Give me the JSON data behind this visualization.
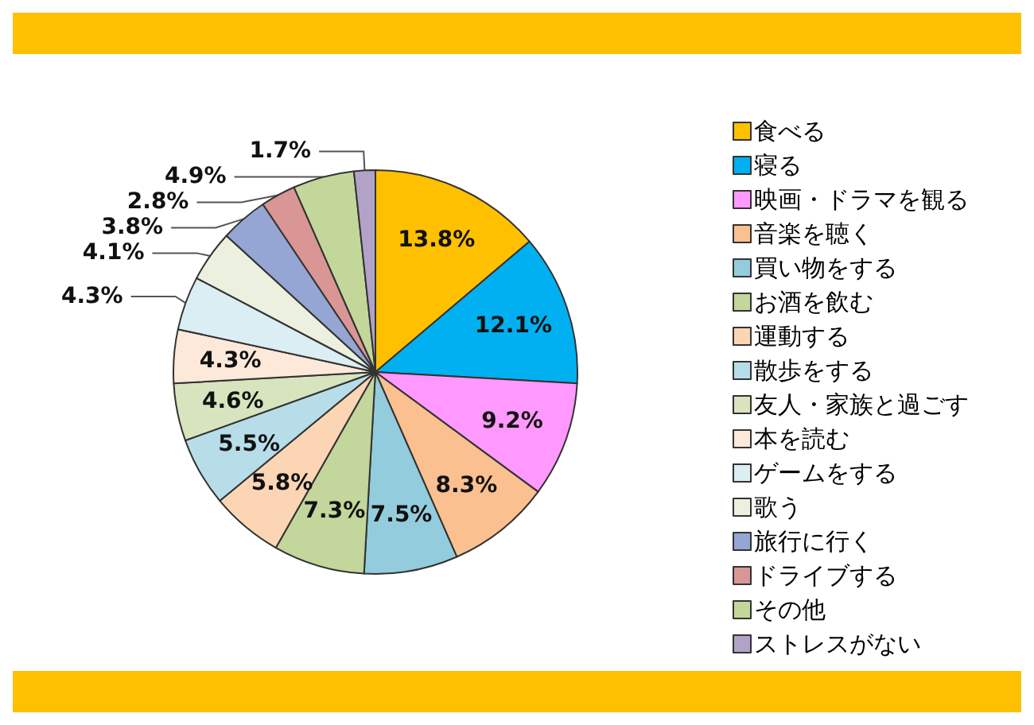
{
  "chart_data": {
    "type": "pie",
    "categories": [
      "食べる",
      "寝る",
      "映画・ドラマを観る",
      "音楽を聴く",
      "買い物をする",
      "お酒を飲む",
      "運動する",
      "散歩をする",
      "友人・家族と過ごす",
      "本を読む",
      "ゲームをする",
      "歌う",
      "旅行に行く",
      "ドライブする",
      "その他",
      "ストレスがない"
    ],
    "values": [
      13.8,
      12.1,
      9.2,
      8.3,
      7.5,
      7.3,
      5.8,
      5.5,
      4.6,
      4.3,
      4.3,
      4.1,
      3.8,
      2.8,
      4.9,
      1.7
    ],
    "value_labels": [
      "13.8%",
      "12.1%",
      "9.2%",
      "8.3%",
      "7.5%",
      "7.3%",
      "5.8%",
      "5.5%",
      "4.6%",
      "4.3%",
      "4.3%",
      "4.1%",
      "3.8%",
      "2.8%",
      "4.9%",
      "1.7%"
    ],
    "colors": [
      "#ffc000",
      "#00b0f0",
      "#ff99ff",
      "#fac090",
      "#93cddd",
      "#c3d69b",
      "#fcd5b5",
      "#b7dee8",
      "#d7e4bd",
      "#fde9d9",
      "#dbeef4",
      "#ebf1de",
      "#95a6d4",
      "#d99694",
      "#c4d79b",
      "#b3a2c7"
    ],
    "legend": "right"
  }
}
